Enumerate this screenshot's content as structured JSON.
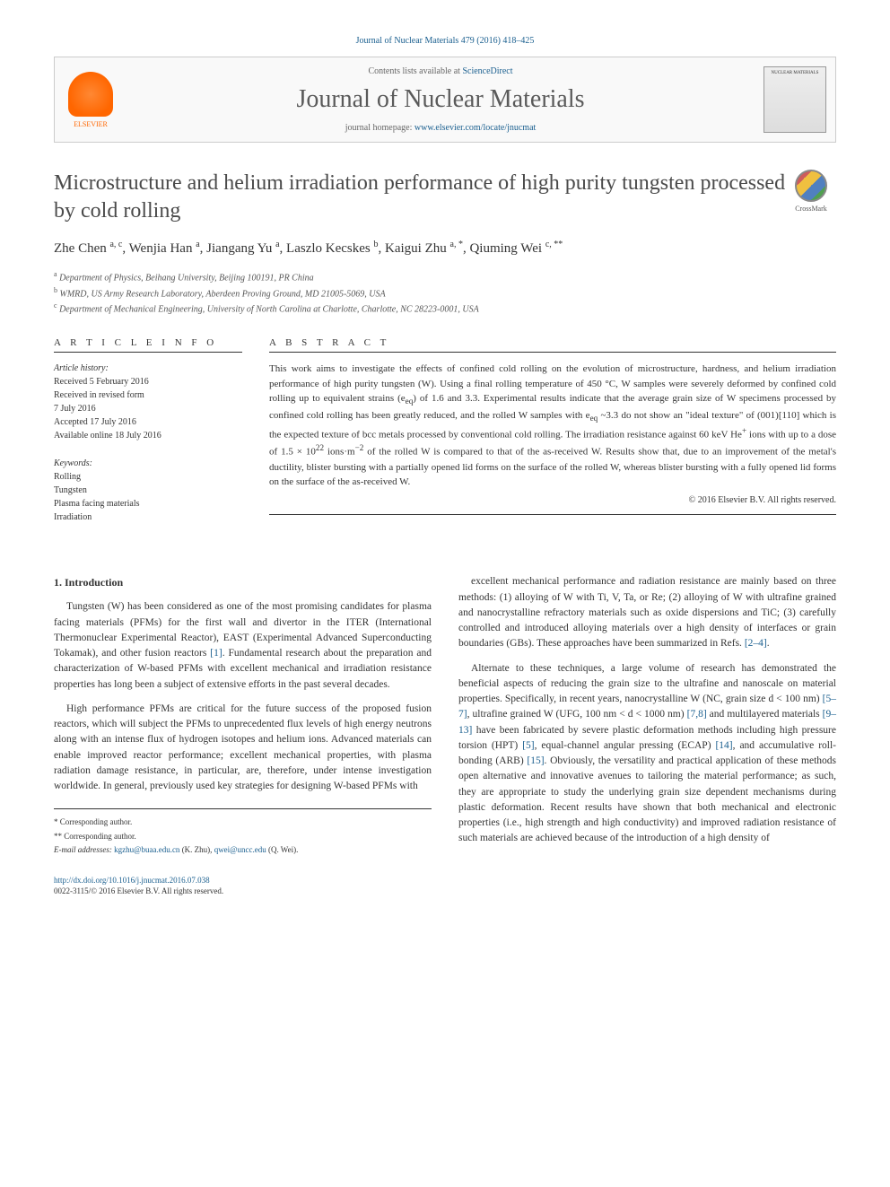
{
  "typography": {
    "body_font": "Georgia, 'Times New Roman', serif",
    "title_fontsize": 24,
    "journal_fontsize": 28,
    "body_fontsize": 11.5,
    "abstract_fontsize": 11,
    "small_fontsize": 10
  },
  "colors": {
    "link": "#1a5f8f",
    "text": "#333333",
    "muted": "#666666",
    "elsevier_orange": "#ff6600",
    "divider": "#333333",
    "header_bg": "#f9f9f9"
  },
  "citation_line": "Journal of Nuclear Materials 479 (2016) 418–425",
  "header": {
    "contents_prefix": "Contents lists available at ",
    "contents_link": "ScienceDirect",
    "journal_name": "Journal of Nuclear Materials",
    "homepage_prefix": "journal homepage: ",
    "homepage_url": "www.elsevier.com/locate/jnucmat",
    "publisher_label": "ELSEVIER",
    "cover_label": "NUCLEAR MATERIALS"
  },
  "crossmark_label": "CrossMark",
  "title": "Microstructure and helium irradiation performance of high purity tungsten processed by cold rolling",
  "authors_html": "Zhe Chen <sup>a, c</sup>, Wenjia Han <sup>a</sup>, Jiangang Yu <sup>a</sup>, Laszlo Kecskes <sup>b</sup>, Kaigui Zhu <sup>a, *</sup>, Qiuming Wei <sup>c, **</sup>",
  "affiliations": [
    {
      "mark": "a",
      "text": "Department of Physics, Beihang University, Beijing 100191, PR China"
    },
    {
      "mark": "b",
      "text": "WMRD, US Army Research Laboratory, Aberdeen Proving Ground, MD 21005-5069, USA"
    },
    {
      "mark": "c",
      "text": "Department of Mechanical Engineering, University of North Carolina at Charlotte, Charlotte, NC 28223-0001, USA"
    }
  ],
  "article_info_heading": "A R T I C L E  I N F O",
  "abstract_heading": "A B S T R A C T",
  "history": {
    "label": "Article history:",
    "received": "Received 5 February 2016",
    "revised_1": "Received in revised form",
    "revised_2": "7 July 2016",
    "accepted": "Accepted 17 July 2016",
    "online": "Available online 18 July 2016"
  },
  "keywords": {
    "label": "Keywords:",
    "items": [
      "Rolling",
      "Tungsten",
      "Plasma facing materials",
      "Irradiation"
    ]
  },
  "abstract_html": "This work aims to investigate the effects of confined cold rolling on the evolution of microstructure, hardness, and helium irradiation performance of high purity tungsten (W). Using a final rolling temperature of 450 °C, W samples were severely deformed by confined cold rolling up to equivalent strains (e<sub>eq</sub>) of 1.6 and 3.3. Experimental results indicate that the average grain size of W specimens processed by confined cold rolling has been greatly reduced, and the rolled W samples with e<sub>eq</sub> ~3.3 do not show an \"ideal texture\" of (001)[110] which is the expected texture of bcc metals processed by conventional cold rolling. The irradiation resistance against 60 keV He<sup>+</sup> ions with up to a dose of 1.5 × 10<sup>22</sup> ions·m<sup>−2</sup> of the rolled W is compared to that of the as-received W. Results show that, due to an improvement of the metal's ductility, blister bursting with a partially opened lid forms on the surface of the rolled W, whereas blister bursting with a fully opened lid forms on the surface of the as-received W.",
  "copyright": "© 2016 Elsevier B.V. All rights reserved.",
  "intro_heading": "1. Introduction",
  "col1_p1": "Tungsten (W) has been considered as one of the most promising candidates for plasma facing materials (PFMs) for the first wall and divertor in the ITER (International Thermonuclear Experimental Reactor), EAST (Experimental Advanced Superconducting Tokamak), and other fusion reactors [1]. Fundamental research about the preparation and characterization of W-based PFMs with excellent mechanical and irradiation resistance properties has long been a subject of extensive efforts in the past several decades.",
  "col1_p2": "High performance PFMs are critical for the future success of the proposed fusion reactors, which will subject the PFMs to unprecedented flux levels of high energy neutrons along with an intense flux of hydrogen isotopes and helium ions. Advanced materials can enable improved reactor performance; excellent mechanical properties, with plasma radiation damage resistance, in particular, are, therefore, under intense investigation worldwide. In general, previously used key strategies for designing W-based PFMs with",
  "col2_p1": "excellent mechanical performance and radiation resistance are mainly based on three methods: (1) alloying of W with Ti, V, Ta, or Re; (2) alloying of W with ultrafine grained and nanocrystalline refractory materials such as oxide dispersions and TiC; (3) carefully controlled and introduced alloying materials over a high density of interfaces or grain boundaries (GBs). These approaches have been summarized in Refs. [2–4].",
  "col2_p2": "Alternate to these techniques, a large volume of research has demonstrated the beneficial aspects of reducing the grain size to the ultrafine and nanoscale on material properties. Specifically, in recent years, nanocrystalline W (NC, grain size d < 100 nm) [5–7], ultrafine grained W (UFG, 100 nm < d < 1000 nm) [7,8] and multilayered materials [9–13] have been fabricated by severe plastic deformation methods including high pressure torsion (HPT) [5], equal-channel angular pressing (ECAP) [14], and accumulative roll-bonding (ARB) [15]. Obviously, the versatility and practical application of these methods open alternative and innovative avenues to tailoring the material performance; as such, they are appropriate to study the underlying grain size dependent mechanisms during plastic deformation. Recent results have shown that both mechanical and electronic properties (i.e., high strength and high conductivity) and improved radiation resistance of such materials are achieved because of the introduction of a high density of",
  "footnotes": {
    "corr1": "* Corresponding author.",
    "corr2": "** Corresponding author.",
    "emails_label": "E-mail addresses: ",
    "email1": "kgzhu@buaa.edu.cn",
    "email1_who": " (K. Zhu), ",
    "email2": "qwei@uncc.edu",
    "email2_who": " (Q. Wei)."
  },
  "doi": {
    "url": "http://dx.doi.org/10.1016/j.jnucmat.2016.07.038",
    "issn": "0022-3115/© 2016 Elsevier B.V. All rights reserved."
  }
}
